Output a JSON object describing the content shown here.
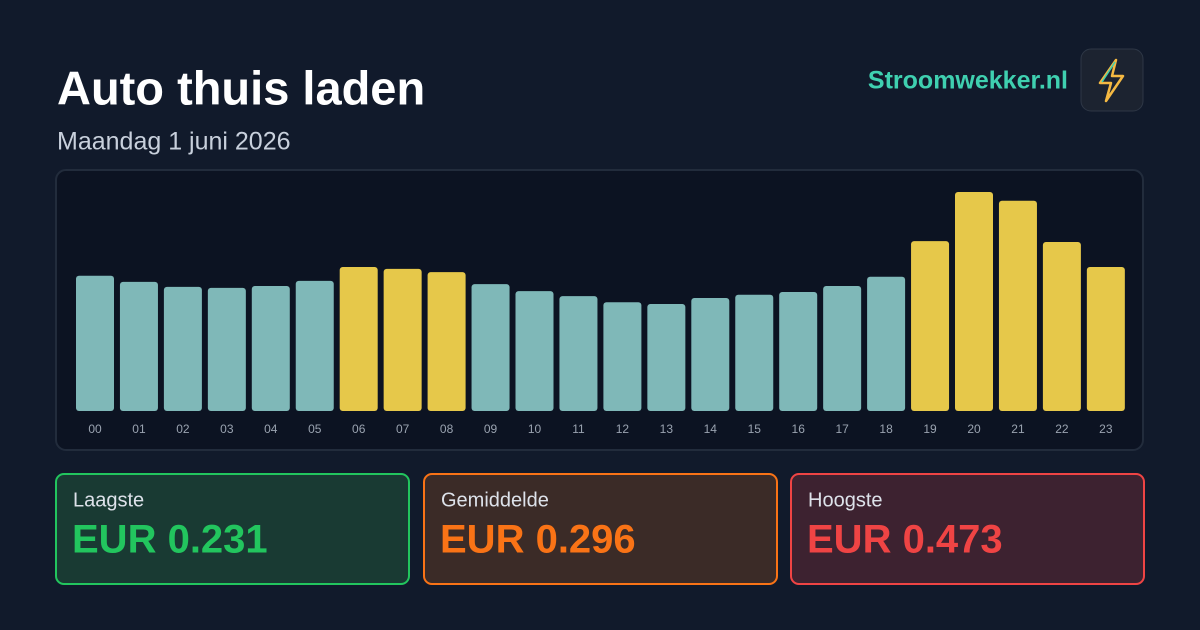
{
  "header": {
    "title": "Auto thuis laden",
    "subtitle": "Maandag 1 juni 2026",
    "brand": "Stroomwekker.nl"
  },
  "chart_data": {
    "type": "bar",
    "categories": [
      "00",
      "01",
      "02",
      "03",
      "04",
      "05",
      "06",
      "07",
      "08",
      "09",
      "10",
      "11",
      "12",
      "13",
      "14",
      "15",
      "16",
      "17",
      "18",
      "19",
      "20",
      "21",
      "22",
      "23"
    ],
    "values": [
      0.292,
      0.279,
      0.268,
      0.266,
      0.27,
      0.281,
      0.311,
      0.307,
      0.3,
      0.274,
      0.259,
      0.248,
      0.235,
      0.231,
      0.244,
      0.251,
      0.257,
      0.27,
      0.29,
      0.367,
      0.473,
      0.454,
      0.365,
      0.311
    ],
    "colors": [
      "#7fb8b8",
      "#7fb8b8",
      "#7fb8b8",
      "#7fb8b8",
      "#7fb8b8",
      "#7fb8b8",
      "#e6c84a",
      "#e6c84a",
      "#e6c84a",
      "#7fb8b8",
      "#7fb8b8",
      "#7fb8b8",
      "#7fb8b8",
      "#7fb8b8",
      "#7fb8b8",
      "#7fb8b8",
      "#7fb8b8",
      "#7fb8b8",
      "#7fb8b8",
      "#e6c84a",
      "#e6c84a",
      "#e6c84a",
      "#e6c84a",
      "#e6c84a"
    ],
    "ylim": [
      0,
      0.473
    ]
  },
  "cards": [
    {
      "label": "Laagste",
      "value": "EUR 0.231"
    },
    {
      "label": "Gemiddelde",
      "value": "EUR 0.296"
    },
    {
      "label": "Hoogste",
      "value": "EUR 0.473"
    }
  ]
}
